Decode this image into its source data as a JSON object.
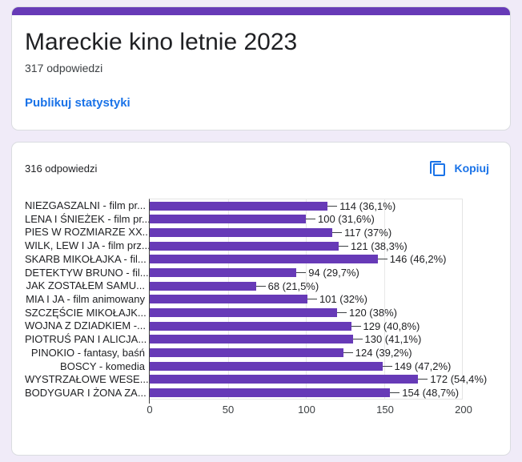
{
  "page": {
    "background_color": "#f0ebf8",
    "accent_color": "#673ab7",
    "link_color": "#1a73e8"
  },
  "header": {
    "title": "Mareckie kino letnie 2023",
    "responses": "317 odpowiedzi",
    "publish_link": "Publikuj statystyki"
  },
  "results": {
    "responses": "316 odpowiedzi",
    "copy_label": "Kopiuj",
    "copy_icon": "content-copy-icon"
  },
  "chart_data": {
    "type": "bar",
    "orientation": "horizontal",
    "bar_color": "#673ab7",
    "grid": true,
    "legend_position": "none",
    "xlim": [
      0,
      200
    ],
    "x_ticks": [
      0,
      50,
      100,
      150,
      200
    ],
    "categories": [
      "NIEZGASZALNI - film pr...",
      "LENA I ŚNIEŻEK - film pr...",
      "PIES W ROZMIARZE XX...",
      "WILK, LEW I JA - film prz...",
      "SKARB MIKOŁAJKA - fil...",
      "DETEKTYW BRUNO - fil...",
      "JAK ZOSTAŁEM SAMU...",
      "MIA I JA - film animowany",
      "SZCZĘŚCIE MIKOŁAJK...",
      "WOJNA Z DZIADKIEM -...",
      "PIOTRUŚ PAN I ALICJA...",
      "PINOKIO - fantasy, baśń",
      "BOSCY - komedia",
      "WYSTRZAŁOWE WESE...",
      "BODYGUAR I ŻONA ZA..."
    ],
    "values": [
      114,
      100,
      117,
      121,
      146,
      94,
      68,
      101,
      120,
      129,
      130,
      124,
      149,
      172,
      154
    ],
    "value_labels": [
      "114 (36,1%)",
      "100 (31,6%)",
      "117 (37%)",
      "121 (38,3%)",
      "146 (46,2%)",
      "94 (29,7%)",
      "68 (21,5%)",
      "101 (32%)",
      "120 (38%)",
      "129 (40,8%)",
      "130 (41,1%)",
      "124 (39,2%)",
      "149 (47,2%)",
      "172 (54,4%)",
      "154 (48,7%)"
    ]
  }
}
